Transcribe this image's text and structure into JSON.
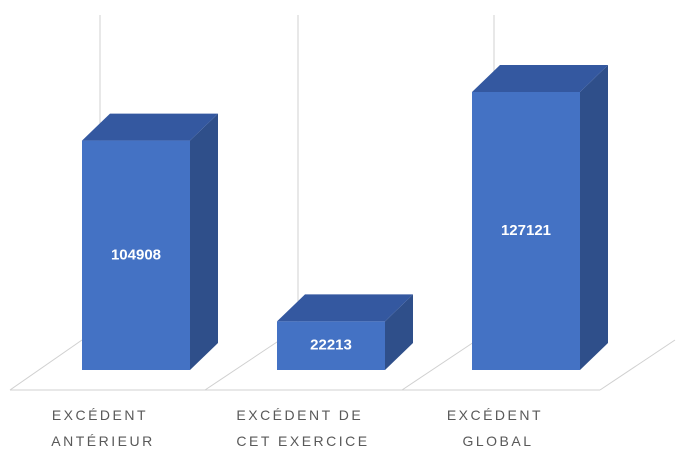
{
  "chart_data": {
    "type": "bar3d",
    "categories": [
      "EXCÉDENT ANTÉRIEUR",
      "EXCÉDENT DE CET EXERCICE",
      "EXCÉDENT GLOBAL"
    ],
    "values": [
      104908,
      22213,
      127121
    ],
    "color": "#4472c4",
    "side_color": "#2f4f8a",
    "top_color": "#3458a0"
  }
}
